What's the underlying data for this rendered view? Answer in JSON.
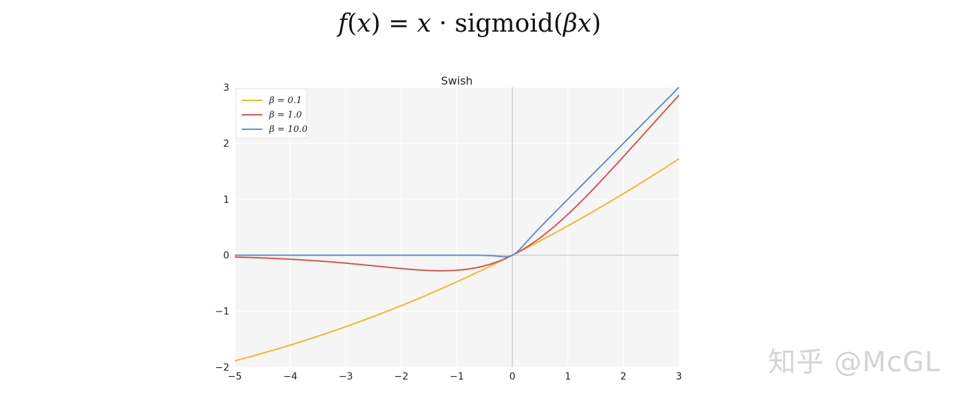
{
  "formula": {
    "f": "f",
    "lhs_rest": "(",
    "x1": "x",
    "close_eq": ") = ",
    "x2": "x",
    "dot": " · ",
    "fn": "sigmoid(",
    "beta": "β",
    "x3": "x",
    "end": ")"
  },
  "watermark": "知乎 @McGL",
  "colors": {
    "background": "#f5f5f5",
    "grid": "#ffffff",
    "axis_zero": "#cfcfcf"
  },
  "chart_data": {
    "type": "line",
    "title": "Swish",
    "xlim": [
      -5,
      3
    ],
    "ylim": [
      -2,
      3
    ],
    "xticks": [
      -5,
      -4,
      -3,
      -2,
      -1,
      0,
      1,
      2,
      3
    ],
    "yticks": [
      -2,
      -1,
      0,
      1,
      2,
      3
    ],
    "xtick_labels": [
      "−5",
      "−4",
      "−3",
      "−2",
      "−1",
      "0",
      "1",
      "2",
      "3"
    ],
    "ytick_labels": [
      "−2",
      "−1",
      "0",
      "1",
      "2",
      "3"
    ],
    "grid": true,
    "legend": "top-left",
    "function": "x * sigmoid(beta * x)",
    "series": [
      {
        "name": "β = 0.1",
        "beta": 0.1,
        "color": "#f2b824"
      },
      {
        "name": "β = 1.0",
        "beta": 1.0,
        "color": "#d9534a"
      },
      {
        "name": "β = 10.0",
        "beta": 10.0,
        "color": "#5b8fd6"
      }
    ]
  }
}
